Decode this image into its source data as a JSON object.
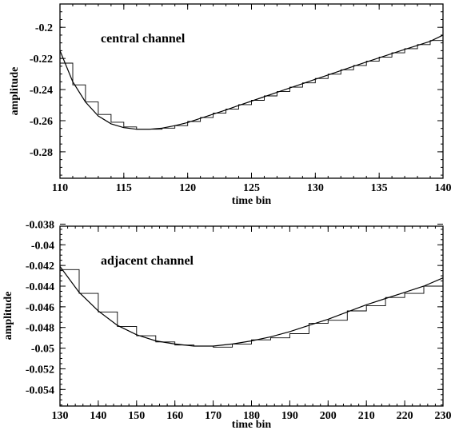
{
  "chart_data": [
    {
      "type": "line",
      "annotation": "central channel",
      "xlabel": "time bin",
      "ylabel": "amplitude",
      "xlim": [
        110,
        140
      ],
      "ylim": [
        -0.297,
        -0.185
      ],
      "xticks": [
        110,
        115,
        120,
        125,
        130,
        135,
        140
      ],
      "yticks": [
        -0.28,
        -0.26,
        -0.24,
        -0.22,
        -0.2
      ],
      "ytick_labels": [
        "-0.28",
        "-0.26",
        "-0.24",
        "-0.22",
        "-0.2"
      ],
      "grid": false,
      "series": [
        {
          "style": "smooth curve",
          "x": [
            110,
            111,
            112,
            113,
            114,
            115,
            116,
            117,
            118,
            119,
            120,
            121,
            122,
            123,
            124,
            125,
            126,
            127,
            128,
            129,
            130,
            131,
            132,
            133,
            134,
            135,
            136,
            137,
            138,
            139,
            140
          ],
          "y": [
            -0.215,
            -0.235,
            -0.248,
            -0.257,
            -0.262,
            -0.2645,
            -0.2655,
            -0.2655,
            -0.2648,
            -0.2632,
            -0.2612,
            -0.2585,
            -0.2558,
            -0.2531,
            -0.2502,
            -0.2474,
            -0.2446,
            -0.2418,
            -0.239,
            -0.2362,
            -0.2334,
            -0.2306,
            -0.2278,
            -0.225,
            -0.2223,
            -0.2196,
            -0.2169,
            -0.2142,
            -0.2116,
            -0.209,
            -0.205
          ]
        },
        {
          "style": "histogram steps",
          "x": [
            110,
            111,
            112,
            113,
            114,
            115,
            116,
            117,
            118,
            119,
            120,
            121,
            122,
            123,
            124,
            125,
            126,
            127,
            128,
            129,
            130,
            131,
            132,
            133,
            134,
            135,
            136,
            137,
            138,
            139,
            140
          ],
          "y": [
            -0.223,
            -0.237,
            -0.248,
            -0.256,
            -0.261,
            -0.264,
            -0.2655,
            -0.2655,
            -0.2648,
            -0.2632,
            -0.2605,
            -0.258,
            -0.2552,
            -0.2525,
            -0.2497,
            -0.2469,
            -0.2441,
            -0.2413,
            -0.2385,
            -0.2357,
            -0.2329,
            -0.2301,
            -0.2273,
            -0.2245,
            -0.2218,
            -0.2191,
            -0.2164,
            -0.2137,
            -0.2111,
            -0.2085,
            -0.205
          ]
        }
      ]
    },
    {
      "type": "line",
      "annotation": "adjacent channel",
      "xlabel": "time bin",
      "ylabel": "amplitude",
      "xlim": [
        130,
        230
      ],
      "ylim": [
        -0.0556,
        -0.0382
      ],
      "xticks": [
        130,
        140,
        150,
        160,
        170,
        180,
        190,
        200,
        210,
        220,
        230
      ],
      "yticks": [
        -0.054,
        -0.052,
        -0.05,
        -0.048,
        -0.046,
        -0.044,
        -0.042,
        -0.04,
        -0.038
      ],
      "ytick_labels": [
        "-0.054",
        "-0.052",
        "-0.05",
        "-0.048",
        "-0.046",
        "-0.044",
        "-0.042",
        "-0.04",
        "-0.038"
      ],
      "grid": false,
      "series": [
        {
          "style": "smooth curve",
          "x": [
            130,
            135,
            140,
            145,
            150,
            155,
            160,
            165,
            170,
            175,
            180,
            185,
            190,
            195,
            200,
            205,
            210,
            215,
            220,
            225,
            230
          ],
          "y": [
            -0.0421,
            -0.0446,
            -0.0464,
            -0.0478,
            -0.0487,
            -0.0493,
            -0.0496,
            -0.0498,
            -0.0498,
            -0.0496,
            -0.0493,
            -0.0489,
            -0.0484,
            -0.0478,
            -0.0472,
            -0.0465,
            -0.0458,
            -0.0452,
            -0.0446,
            -0.044,
            -0.0432
          ]
        },
        {
          "style": "histogram steps",
          "x": [
            130,
            135,
            140,
            145,
            150,
            155,
            160,
            165,
            170,
            175,
            180,
            185,
            190,
            195,
            200,
            205,
            210,
            215,
            220,
            225,
            230
          ],
          "y": [
            -0.0424,
            -0.0447,
            -0.0465,
            -0.0479,
            -0.0488,
            -0.0494,
            -0.0497,
            -0.0498,
            -0.0499,
            -0.0496,
            -0.0492,
            -0.049,
            -0.0486,
            -0.0476,
            -0.0473,
            -0.0464,
            -0.0459,
            -0.0451,
            -0.0447,
            -0.044,
            -0.0431
          ]
        }
      ]
    }
  ]
}
